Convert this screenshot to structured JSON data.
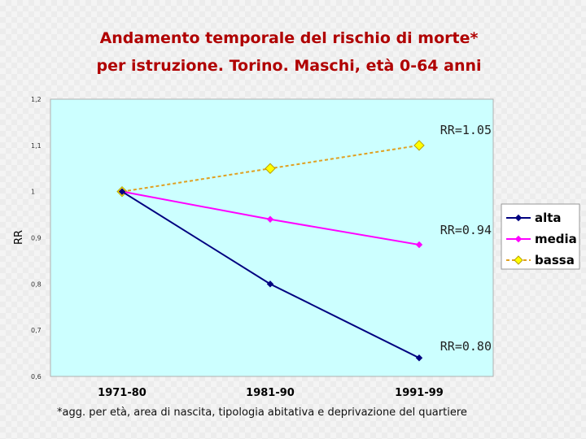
{
  "chart_data": {
    "type": "line",
    "title": "Andamento temporale del rischio di morte*",
    "subtitle": "per istruzione. Torino. Maschi, età 0-64 anni",
    "ylabel": "RR",
    "xlabel": "",
    "categories": [
      "1971-80",
      "1981-90",
      "1991-99"
    ],
    "ylim": [
      0.6,
      1.2
    ],
    "yticks": [
      "0,6",
      "0,7",
      "0,8",
      "0,9",
      "1",
      "1,1",
      "1,2"
    ],
    "series": [
      {
        "name": "alta",
        "values": [
          1.0,
          0.8,
          0.64
        ],
        "color": "#000080",
        "marker": "diamond",
        "dashed": false
      },
      {
        "name": "media",
        "values": [
          1.0,
          0.94,
          0.885
        ],
        "color": "#ff00ff",
        "marker": "diamond",
        "dashed": false
      },
      {
        "name": "bassa",
        "values": [
          1.0,
          1.05,
          1.1
        ],
        "color": "#ffff00",
        "line_color": "#e0a020",
        "marker": "diamond",
        "dashed": true
      }
    ],
    "annotations": [
      "RR=1.05",
      "RR=0.94",
      "RR=0.80"
    ],
    "legend_position": "right",
    "plot_background": "#ccffff",
    "grid": false
  },
  "footnote": "*agg. per età, area di nascita, tipologia abitativa e deprivazione del quartiere"
}
